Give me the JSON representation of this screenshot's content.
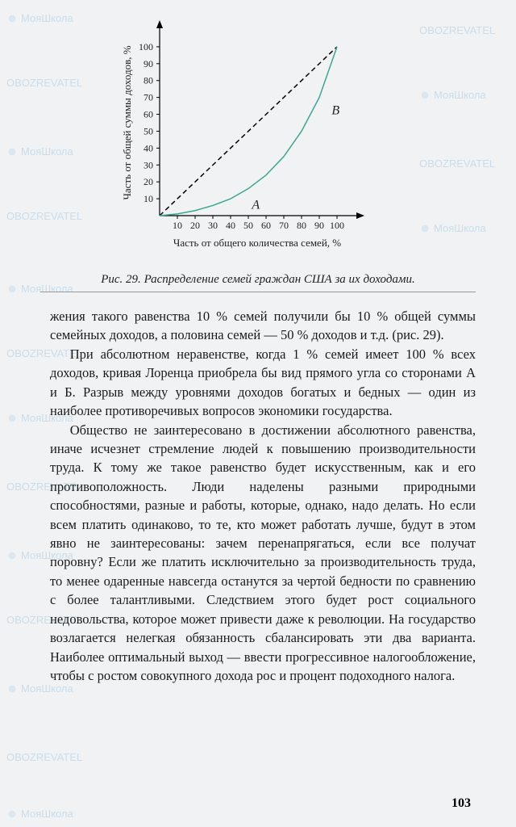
{
  "watermark": {
    "brand": "МояШкола",
    "sub": "OBOZREVATEL"
  },
  "chart": {
    "type": "line",
    "xlim": [
      0,
      110
    ],
    "ylim": [
      0,
      110
    ],
    "xticks": [
      10,
      20,
      30,
      40,
      50,
      60,
      70,
      80,
      90,
      100
    ],
    "yticks": [
      10,
      20,
      30,
      40,
      50,
      60,
      70,
      80,
      90,
      100
    ],
    "diagonal": [
      [
        0,
        0
      ],
      [
        100,
        100
      ]
    ],
    "lorenz": [
      [
        0,
        0
      ],
      [
        10,
        1
      ],
      [
        20,
        3
      ],
      [
        30,
        6
      ],
      [
        40,
        10
      ],
      [
        50,
        16
      ],
      [
        60,
        24
      ],
      [
        70,
        35
      ],
      [
        80,
        50
      ],
      [
        90,
        70
      ],
      [
        100,
        100
      ]
    ],
    "label_A": "A",
    "label_B": "B",
    "ylabel": "Часть от общей суммы доходов, %",
    "xlabel": "Часть от общего количества семей, %",
    "axis_color": "#000000",
    "grid_color": "none",
    "diagonal_style": "dashed",
    "diagonal_color": "#000000",
    "lorenz_color": "#3aa890",
    "lorenz_width": 1.5
  },
  "caption": {
    "prefix": "Рис. 29.",
    "text": "Распределение семей граждан США за их доходами."
  },
  "paragraphs": {
    "p1": "жения такого равенства 10 % семей получили бы 10 % общей суммы семейных доходов, а половина семей — 50 % доходов и т.д. (рис. 29).",
    "p2": "При абсолютном неравенстве, когда 1 % семей имеет 100 % всех доходов, кривая Лоренца приобрела бы вид прямого угла со сторонами А и Б. Разрыв между уровнями доходов богатых и бедных — один из наиболее противоречивых вопросов экономики государства.",
    "p3": "Общество не заинтересовано в достижении абсолютного равенства, иначе исчезнет стремление людей к повышению производительности труда. К тому же такое равенство будет искусственным, как и его противоположность. Люди наделены разными природными способностями, разные и работы, которые, однако, надо делать. Но если всем платить одинаково, то те, кто может работать лучше, будут в этом явно не заинтересованы: зачем перенапрягаться, если все получат поровну? Если же платить исключительно за производительность труда, то менее одаренные навсегда останутся за чертой бедности по сравнению с более талантливыми. Следствием этого будет рост социального недовольства, которое может привести даже к революции. На государство возлагается нелегкая обязанность сбалансировать эти два варианта. Наиболее оптимальный выход — ввести прогрессивное налогообложение, чтобы с ростом совокупного дохода рос и процент подоходного налога."
  },
  "page_number": "103"
}
